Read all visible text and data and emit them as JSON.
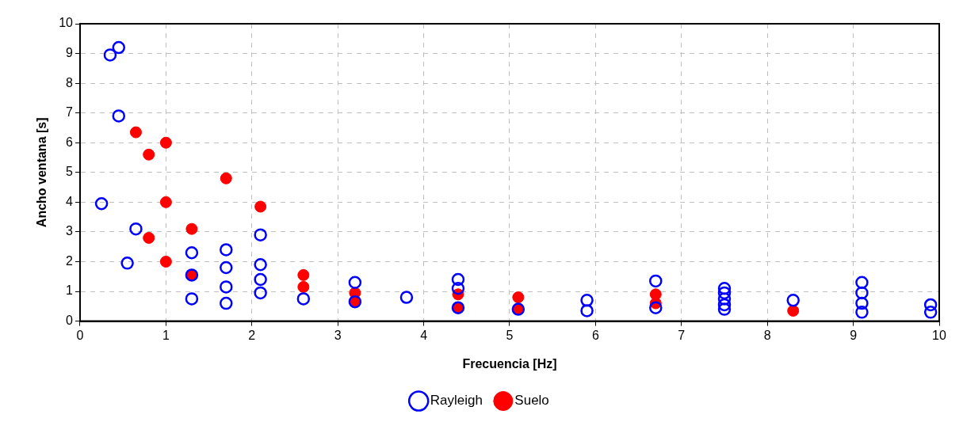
{
  "chart_data": {
    "type": "scatter",
    "xlabel": "Frecuencia [Hz]",
    "ylabel": "Ancho ventana [s]",
    "xlim": [
      0,
      10
    ],
    "xticks": [
      0,
      1,
      2,
      3,
      4,
      5,
      6,
      7,
      8,
      9,
      10
    ],
    "ylim": [
      0,
      10
    ],
    "yticks": [
      0,
      1,
      2,
      3,
      4,
      5,
      6,
      7,
      8,
      9,
      10
    ],
    "grid": true,
    "legend": "bottom",
    "marker": "circle",
    "series": [
      {
        "name": "Rayleigh",
        "color": "#0000ff",
        "x": [
          0.35,
          0.45,
          0.45,
          0.25,
          0.65,
          0.55,
          1.3,
          1.3,
          1.3,
          1.7,
          1.7,
          1.7,
          1.7,
          2.1,
          2.1,
          2.1,
          2.1,
          2.6,
          3.2,
          3.2,
          3.8,
          4.4,
          4.4,
          4.4,
          5.1,
          5.9,
          5.9,
          6.7,
          6.7,
          7.5,
          7.5,
          7.5,
          7.5,
          7.5,
          8.3,
          9.1,
          9.1,
          9.1,
          9.1,
          9.9,
          9.9
        ],
        "values": [
          8.95,
          9.2,
          6.9,
          3.95,
          3.1,
          1.95,
          2.3,
          1.55,
          0.75,
          2.4,
          1.8,
          1.15,
          0.6,
          2.9,
          1.9,
          1.4,
          0.95,
          0.75,
          1.3,
          0.65,
          0.8,
          1.4,
          1.1,
          0.45,
          0.4,
          0.7,
          0.35,
          1.35,
          0.45,
          1.1,
          0.95,
          0.75,
          0.55,
          0.4,
          0.7,
          1.3,
          0.95,
          0.6,
          0.3,
          0.55,
          0.3
        ]
      },
      {
        "name": "Suelo",
        "color": "#ff0000",
        "x": [
          0.65,
          1.0,
          0.8,
          1.7,
          1.0,
          2.1,
          1.3,
          0.8,
          1.0,
          1.3,
          2.6,
          2.6,
          3.2,
          3.2,
          4.4,
          4.4,
          5.1,
          5.1,
          6.7,
          6.7,
          8.3
        ],
        "values": [
          6.35,
          6.0,
          5.6,
          4.8,
          4.0,
          3.85,
          3.1,
          2.8,
          2.0,
          1.55,
          1.55,
          1.15,
          0.95,
          0.65,
          0.9,
          0.45,
          0.8,
          0.4,
          0.9,
          0.6,
          0.35
        ]
      }
    ]
  }
}
